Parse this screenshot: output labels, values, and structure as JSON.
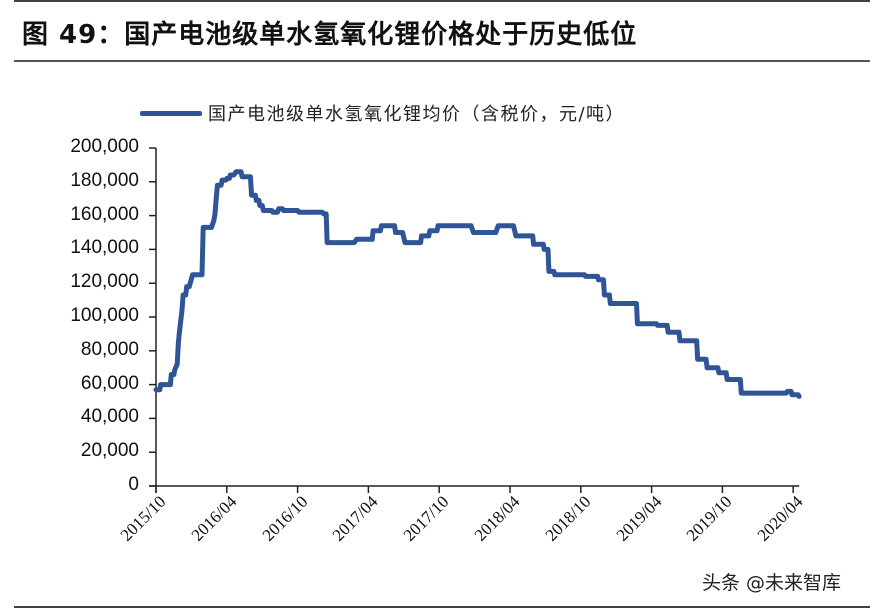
{
  "figure": {
    "title": "图 49：国产电池级单水氢氧化锂价格处于历史低位",
    "watermark": "头条 @未来智库"
  },
  "colors": {
    "series": "#2f5597",
    "axis": "#222222",
    "rule": "#444444"
  },
  "chart_data": {
    "type": "line",
    "title": "图 49：国产电池级单水氢氧化锂价格处于历史低位",
    "xlabel": "",
    "ylabel": "",
    "ylim": [
      0,
      200000
    ],
    "yticks": [
      0,
      20000,
      40000,
      60000,
      80000,
      100000,
      120000,
      140000,
      160000,
      180000,
      200000
    ],
    "ytick_labels": [
      "0",
      "20,000",
      "40,000",
      "60,000",
      "80,000",
      "100,000",
      "120,000",
      "140,000",
      "160,000",
      "180,000",
      "200,000"
    ],
    "xtick_labels": [
      "2015/10",
      "2016/04",
      "2016/10",
      "2017/04",
      "2017/10",
      "2018/04",
      "2018/10",
      "2019/04",
      "2019/10",
      "2020/04"
    ],
    "x_unit": "months since 2015/10",
    "xlim": [
      0,
      54.5
    ],
    "grid": false,
    "legend_position": "top",
    "legend": [
      "国产电池级单水氢氧化锂均价（含税价，元/吨）"
    ],
    "series": [
      {
        "name": "国产电池级单水氢氧化锂均价（含税价，元/吨）",
        "points": [
          [
            0.0,
            57000
          ],
          [
            0.3,
            60000
          ],
          [
            0.8,
            60000
          ],
          [
            1.2,
            66000
          ],
          [
            1.5,
            68000
          ],
          [
            1.2,
            66000
          ],
          [
            1.7,
            72000
          ],
          [
            1.4,
            72000
          ],
          [
            1.4,
            72000
          ],
          [
            1.4,
            72000
          ],
          [
            1.4,
            72000
          ],
          [
            1.7,
            78000
          ],
          [
            1.4,
            72000
          ],
          [
            1.9,
            85000
          ],
          [
            2.0,
            92000
          ],
          [
            2.2,
            104000
          ],
          [
            2.3,
            113000
          ],
          [
            2.6,
            118000
          ],
          [
            2.9,
            120000
          ],
          [
            3.0,
            125000
          ],
          [
            3.8,
            125000
          ],
          [
            3.1,
            125000
          ]
        ],
        "points_clean": [
          [
            0.0,
            57000
          ],
          [
            0.3,
            60000
          ],
          [
            0.8,
            60000
          ],
          [
            1.2,
            66000
          ],
          [
            1.5,
            68000
          ],
          [
            1.7,
            72000
          ],
          [
            1.9,
            85000
          ],
          [
            2.0,
            92000
          ],
          [
            2.2,
            104000
          ],
          [
            2.3,
            113000
          ],
          [
            2.6,
            118000
          ],
          [
            2.9,
            120000
          ],
          [
            3.1,
            125000
          ],
          [
            3.9,
            125000
          ],
          [
            3.9,
            134000
          ],
          [
            4.0,
            153000
          ],
          [
            4.6,
            153000
          ],
          [
            4.8,
            156000
          ],
          [
            4.9,
            160000
          ],
          [
            5.0,
            170000
          ],
          [
            5.1,
            178000
          ],
          [
            5.6,
            181000
          ],
          [
            6.0,
            182000
          ],
          [
            6.2,
            184000
          ],
          [
            6.6,
            184000
          ],
          [
            6.8,
            186000
          ],
          [
            7.2,
            186000
          ],
          [
            7.3,
            183000
          ],
          [
            7.7,
            183000
          ],
          [
            8.0,
            183000
          ],
          [
            8.1,
            172000
          ],
          [
            8.5,
            169000
          ],
          [
            8.8,
            166000
          ],
          [
            9.0,
            166000
          ],
          [
            9.1,
            164000
          ],
          [
            9.5,
            163000
          ],
          [
            9.9,
            163000
          ],
          [
            10.0,
            162000
          ],
          [
            10.3,
            162000
          ],
          [
            10.4,
            164000
          ],
          [
            10.7,
            163000
          ],
          [
            12.0,
            163000
          ],
          [
            12.1,
            162000
          ],
          [
            14.0,
            162000
          ],
          [
            14.1,
            161000
          ],
          [
            14.0,
            161000
          ],
          [
            14.3,
            161000
          ],
          [
            14.4,
            161000
          ],
          [
            14.2,
            161000
          ]
        ],
        "points_final": [
          [
            0.0,
            57000
          ],
          [
            0.4,
            60000
          ],
          [
            0.9,
            60000
          ],
          [
            1.3,
            66000
          ],
          [
            1.6,
            69000
          ],
          [
            1.8,
            72000
          ],
          [
            1.9,
            85000
          ],
          [
            2.0,
            92000
          ],
          [
            2.2,
            104000
          ],
          [
            2.3,
            113000
          ],
          [
            2.6,
            118000
          ],
          [
            2.9,
            120000
          ],
          [
            3.1,
            125000
          ],
          [
            3.9,
            125000
          ],
          [
            4.0,
            153000
          ],
          [
            4.7,
            153000
          ],
          [
            4.9,
            157000
          ],
          [
            5.0,
            161000
          ],
          [
            5.1,
            170000
          ],
          [
            5.2,
            178000
          ],
          [
            5.6,
            181000
          ],
          [
            6.0,
            182000
          ],
          [
            6.3,
            184000
          ],
          [
            6.6,
            184000
          ],
          [
            6.8,
            186000
          ],
          [
            7.2,
            186000
          ],
          [
            7.3,
            183000
          ],
          [
            8.0,
            183000
          ],
          [
            8.1,
            172000
          ],
          [
            8.5,
            169000
          ],
          [
            8.8,
            166000
          ],
          [
            9.0,
            166000
          ],
          [
            9.1,
            163000
          ],
          [
            9.6,
            163000
          ],
          [
            9.9,
            162000
          ],
          [
            10.3,
            162000
          ],
          [
            10.4,
            164000
          ],
          [
            10.8,
            163000
          ],
          [
            12.0,
            163000
          ],
          [
            12.1,
            162000
          ],
          [
            14.1,
            162000
          ],
          [
            14.2,
            161000
          ],
          [
            14.0,
            161000
          ],
          [
            14.4,
            161000
          ],
          [
            14.1,
            161000
          ],
          [
            14.4,
            161000
          ],
          [
            14.4,
            161000
          ],
          [
            14.1,
            161000
          ],
          [
            14.4,
            161000
          ],
          [
            14.4,
            161000
          ]
        ]
      }
    ],
    "values_sampled": {
      "x_months": [
        0,
        0.4,
        0.9,
        1.3,
        1.6,
        1.8,
        1.9,
        2.0,
        2.2,
        2.3,
        2.6,
        2.9,
        3.1,
        3.9,
        4.0,
        4.7,
        4.9,
        5.0,
        5.1,
        5.2,
        5.6,
        6.0,
        6.3,
        6.6,
        6.8,
        7.2,
        7.3,
        8.0,
        8.1,
        8.5,
        8.8,
        9.0,
        9.1,
        9.6,
        9.9,
        10.3,
        10.4,
        10.8,
        12.0,
        12.1,
        14.1,
        14.2,
        14.5,
        16.8,
        17.0,
        17.8,
        18.4,
        19.1,
        19.8,
        20.3,
        20.9,
        21.1,
        21.4,
        22.2,
        22.5,
        23.2,
        23.9,
        24.0,
        26.7,
        26.9,
        28.8,
        29.0,
        30.3,
        30.5,
        31.6,
        32.0,
        32.9,
        33.3,
        33.8,
        34.3,
        36.4,
        37.5,
        38.0,
        38.5,
        40.5,
        40.8,
        42.5,
        43.4,
        44.4,
        45.9,
        46.7,
        47.7,
        48.4,
        49.6,
        52.2,
        53.5,
        53.9,
        54.5
      ],
      "y": [
        57000,
        60000,
        60000,
        66000,
        69000,
        72000,
        85000,
        92000,
        104000,
        113000,
        118000,
        120000,
        125000,
        125000,
        153000,
        153000,
        157000,
        161000,
        170000,
        178000,
        181000,
        182000,
        184000,
        184000,
        186000,
        186000,
        183000,
        183000,
        172000,
        169000,
        166000,
        166000,
        163000,
        163000,
        162000,
        162000,
        164000,
        163000,
        163000,
        162000,
        162000,
        161000,
        144000,
        144000,
        146000,
        146000,
        151000,
        154000,
        154000,
        150000,
        150000,
        144000,
        144000,
        144000,
        148000,
        151000,
        154000,
        154000,
        154000,
        150000,
        150000,
        154000,
        154000,
        148000,
        148000,
        143000,
        140000,
        127000,
        125000,
        125000,
        124000,
        122000,
        113000,
        108000,
        108000,
        96000,
        95000,
        91000,
        86000,
        75000,
        70000,
        67000,
        63000,
        55000,
        55000,
        56000,
        54000,
        53000
      ]
    }
  }
}
